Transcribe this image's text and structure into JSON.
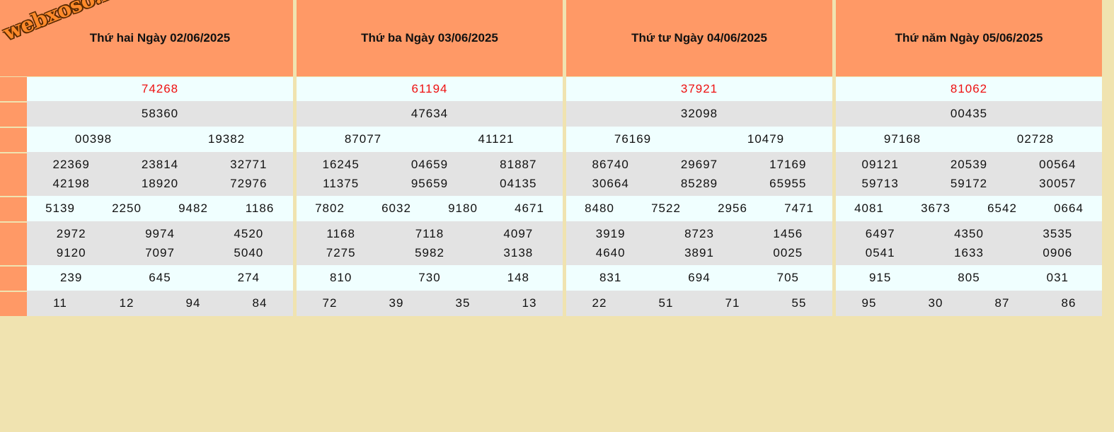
{
  "logo_text": "webxoso.net",
  "columns": [
    {
      "title": "Thứ hai Ngày 02/06/2025",
      "special": "74268",
      "first": "58360",
      "second": [
        "00398",
        "19382"
      ],
      "third": [
        [
          "22369",
          "23814",
          "32771"
        ],
        [
          "42198",
          "18920",
          "72976"
        ]
      ],
      "fourth": [
        "5139",
        "2250",
        "9482",
        "1186"
      ],
      "fifth": [
        [
          "2972",
          "9974",
          "4520"
        ],
        [
          "9120",
          "7097",
          "5040"
        ]
      ],
      "sixth": [
        "239",
        "645",
        "274"
      ],
      "seventh": [
        "11",
        "12",
        "94",
        "84"
      ]
    },
    {
      "title": "Thứ ba Ngày 03/06/2025",
      "special": "61194",
      "first": "47634",
      "second": [
        "87077",
        "41121"
      ],
      "third": [
        [
          "16245",
          "04659",
          "81887"
        ],
        [
          "11375",
          "95659",
          "04135"
        ]
      ],
      "fourth": [
        "7802",
        "6032",
        "9180",
        "4671"
      ],
      "fifth": [
        [
          "1168",
          "7118",
          "4097"
        ],
        [
          "7275",
          "5982",
          "3138"
        ]
      ],
      "sixth": [
        "810",
        "730",
        "148"
      ],
      "seventh": [
        "72",
        "39",
        "35",
        "13"
      ]
    },
    {
      "title": "Thứ tư Ngày 04/06/2025",
      "special": "37921",
      "first": "32098",
      "second": [
        "76169",
        "10479"
      ],
      "third": [
        [
          "86740",
          "29697",
          "17169"
        ],
        [
          "30664",
          "85289",
          "65955"
        ]
      ],
      "fourth": [
        "8480",
        "7522",
        "2956",
        "7471"
      ],
      "fifth": [
        [
          "3919",
          "8723",
          "1456"
        ],
        [
          "4640",
          "3891",
          "0025"
        ]
      ],
      "sixth": [
        "831",
        "694",
        "705"
      ],
      "seventh": [
        "22",
        "51",
        "71",
        "55"
      ]
    },
    {
      "title": "Thứ năm Ngày 05/06/2025",
      "special": "81062",
      "first": "00435",
      "second": [
        "97168",
        "02728"
      ],
      "third": [
        [
          "09121",
          "20539",
          "00564"
        ],
        [
          "59713",
          "59172",
          "30057"
        ]
      ],
      "fourth": [
        "4081",
        "3673",
        "6542",
        "0664"
      ],
      "fifth": [
        [
          "6497",
          "4350",
          "3535"
        ],
        [
          "0541",
          "1633",
          "0906"
        ]
      ],
      "sixth": [
        "915",
        "805",
        "031"
      ],
      "seventh": [
        "95",
        "30",
        "87",
        "86"
      ]
    }
  ],
  "colors": {
    "header": "#ff9966",
    "background": "#f0e3b0",
    "special_text": "#ee1111",
    "row_light": "#f0ffff",
    "row_grey": "#e3e3e3"
  }
}
